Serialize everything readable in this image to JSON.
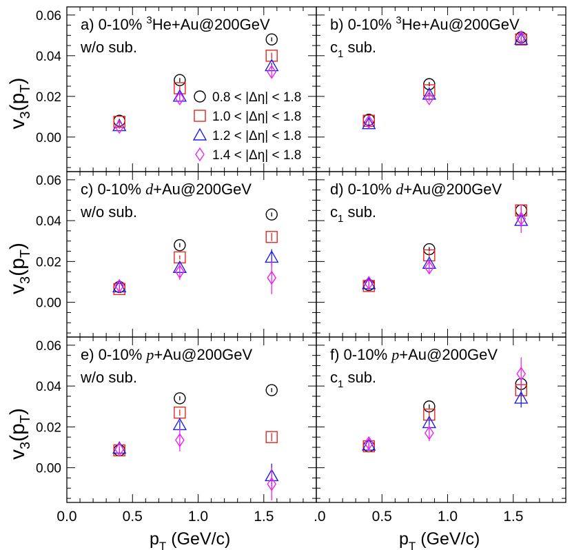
{
  "chart_data": {
    "type": "scatter",
    "title": "",
    "xlabel": "p",
    "xlabel_sub": "T",
    "xlabel_unit": " (GeV/c)",
    "ylabel": "v",
    "ylabel_sub3": "3",
    "ylabel_paren": "(p",
    "ylabel_subT": "T",
    "ylabel_close": ")",
    "xlim": [
      0.0,
      1.9
    ],
    "ylim": [
      -0.017,
      0.064
    ],
    "x_ticks": [
      0.0,
      0.5,
      1.0,
      1.5
    ],
    "x_tick_labels": [
      "0.0",
      "0.5",
      "1.0",
      "1.5"
    ],
    "y_ticks": [
      0.0,
      0.02,
      0.04,
      0.06
    ],
    "y_tick_labels": [
      "0.00",
      "0.02",
      "0.04",
      "0.06"
    ],
    "x": [
      0.4,
      0.86,
      1.56
    ],
    "legend": {
      "placement": "inside panel a, right",
      "entries": [
        {
          "label": "0.8 < |Δη| < 1.8",
          "series": 0
        },
        {
          "label": "1.0 < |Δη| < 1.8",
          "series": 1
        },
        {
          "label": "1.2 < |Δη| < 1.8",
          "series": 2
        },
        {
          "label": "1.4 < |Δη| < 1.8",
          "series": 3
        }
      ]
    },
    "series_styles": [
      {
        "name": "0.8 < |Δη| < 1.8",
        "marker": "circle",
        "color": "#000000"
      },
      {
        "name": "1.0 < |Δη| < 1.8",
        "marker": "square",
        "color": "#e8231e"
      },
      {
        "name": "1.2 < |Δη| < 1.8",
        "marker": "triangle",
        "color": "#1e1ee8"
      },
      {
        "name": "1.4 < |Δη| < 1.8",
        "marker": "diamond",
        "color": "#ee22ee"
      }
    ],
    "panels": [
      {
        "id": "a",
        "label_prefix": "a) 0-10% ",
        "sup": "3",
        "system": "He",
        "suffix": "+Au@200GeV",
        "italic": false,
        "sublabel": "w/o sub.",
        "sublabel_sub": "",
        "series": [
          {
            "values": [
              0.008,
              0.028,
              0.048
            ],
            "errors": [
              0.001,
              0.001,
              0.001
            ]
          },
          {
            "values": [
              0.0075,
              0.024,
              0.04
            ],
            "errors": [
              0.001,
              0.001,
              0.0015
            ]
          },
          {
            "values": [
              0.0055,
              0.02,
              0.035
            ],
            "errors": [
              0.001,
              0.0015,
              0.0015
            ]
          },
          {
            "values": [
              0.005,
              0.019,
              0.032
            ],
            "errors": [
              0.001,
              0.0015,
              0.0025
            ]
          }
        ]
      },
      {
        "id": "b",
        "label_prefix": "b) 0-10% ",
        "sup": "3",
        "system": "He",
        "suffix": "+Au@200GeV",
        "italic": false,
        "sublabel": "c",
        "sublabel_sub": "1",
        "sublabel_rest": " sub.",
        "series": [
          {
            "values": [
              0.0085,
              0.026,
              0.049
            ],
            "errors": [
              0.001,
              0.001,
              0.001
            ]
          },
          {
            "values": [
              0.008,
              0.023,
              0.048
            ],
            "errors": [
              0.001,
              0.0015,
              0.0015
            ]
          },
          {
            "values": [
              0.0065,
              0.021,
              0.048
            ],
            "errors": [
              0.001,
              0.0015,
              0.0015
            ]
          },
          {
            "values": [
              0.0075,
              0.019,
              0.049
            ],
            "errors": [
              0.001,
              0.0015,
              0.002
            ]
          }
        ]
      },
      {
        "id": "c",
        "label_prefix": "c) 0-10% ",
        "sup": "",
        "system": "d",
        "suffix": "+Au@200GeV",
        "italic": true,
        "sublabel": "w/o sub.",
        "sublabel_sub": "",
        "series": [
          {
            "values": [
              0.0075,
              0.028,
              0.043
            ],
            "errors": [
              0.001,
              0.001,
              0.001
            ]
          },
          {
            "values": [
              0.0065,
              0.022,
              0.032
            ],
            "errors": [
              0.001,
              0.001,
              0.002
            ]
          },
          {
            "values": [
              0.0075,
              0.017,
              0.022
            ],
            "errors": [
              0.001,
              0.002,
              0.004
            ]
          },
          {
            "values": [
              0.008,
              0.015,
              0.012
            ],
            "errors": [
              0.0015,
              0.004,
              0.008
            ]
          }
        ]
      },
      {
        "id": "d",
        "label_prefix": "d) 0-10% ",
        "sup": "",
        "system": "d",
        "suffix": "+Au@200GeV",
        "italic": true,
        "sublabel": "c",
        "sublabel_sub": "1",
        "sublabel_rest": " sub.",
        "series": [
          {
            "values": [
              0.0085,
              0.026,
              0.045
            ],
            "errors": [
              0.001,
              0.001,
              0.0015
            ]
          },
          {
            "values": [
              0.008,
              0.023,
              0.045
            ],
            "errors": [
              0.001,
              0.0015,
              0.002
            ]
          },
          {
            "values": [
              0.009,
              0.019,
              0.04
            ],
            "errors": [
              0.0015,
              0.002,
              0.003
            ]
          },
          {
            "values": [
              0.0095,
              0.017,
              0.041
            ],
            "errors": [
              0.002,
              0.003,
              0.007
            ]
          }
        ]
      },
      {
        "id": "e",
        "label_prefix": "e) 0-10% ",
        "sup": "",
        "system": "p",
        "suffix": "+Au@200GeV",
        "italic": true,
        "sublabel": "w/o sub.",
        "sublabel_sub": "",
        "series": [
          {
            "values": [
              0.0085,
              0.034,
              0.038
            ],
            "errors": [
              0.001,
              0.001,
              0.001
            ]
          },
          {
            "values": [
              0.0085,
              0.027,
              0.015
            ],
            "errors": [
              0.001,
              0.0015,
              0.002
            ]
          },
          {
            "values": [
              0.0095,
              0.021,
              -0.004
            ],
            "errors": [
              0.001,
              0.002,
              0.006
            ]
          },
          {
            "values": [
              0.009,
              0.0135,
              -0.008
            ],
            "errors": [
              0.0015,
              0.0055,
              0.008
            ]
          }
        ]
      },
      {
        "id": "f",
        "label_prefix": "f) 0-10% ",
        "sup": "",
        "system": "p",
        "suffix": "+Au@200GeV",
        "italic": true,
        "sublabel": "c",
        "sublabel_sub": "1",
        "sublabel_rest": " sub.",
        "series": [
          {
            "values": [
              0.0105,
              0.03,
              0.041
            ],
            "errors": [
              0.001,
              0.001,
              0.002
            ]
          },
          {
            "values": [
              0.0105,
              0.026,
              0.038
            ],
            "errors": [
              0.001,
              0.002,
              0.003
            ]
          },
          {
            "values": [
              0.011,
              0.022,
              0.034
            ],
            "errors": [
              0.0015,
              0.002,
              0.0045
            ]
          },
          {
            "values": [
              0.012,
              0.017,
              0.046
            ],
            "errors": [
              0.0025,
              0.004,
              0.008
            ]
          }
        ]
      }
    ]
  }
}
